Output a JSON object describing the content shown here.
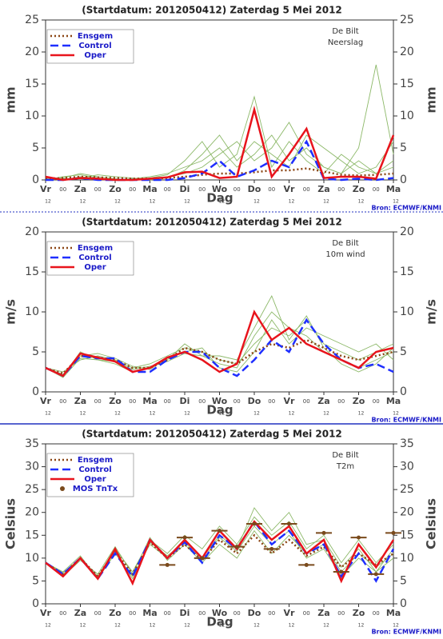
{
  "chart_data": [
    {
      "type": "line",
      "title": "(Startdatum: 2012050412)   Zaterdag   5 Mei      2012",
      "station": "De Bilt",
      "variable": "Neerslag",
      "ylabel": "mm",
      "xlabel": "Dag",
      "source": "Bron: ECMWF/KNMI",
      "x": [
        0,
        12,
        24,
        36,
        48,
        60,
        72,
        84,
        96,
        108,
        120,
        132,
        144,
        156,
        168,
        180,
        192,
        204,
        216,
        228,
        240
      ],
      "xlim": [
        0,
        240
      ],
      "xticks": [
        {
          "value": 0,
          "label": "Vr"
        },
        {
          "value": 24,
          "label": "Za"
        },
        {
          "value": 48,
          "label": "Zo"
        },
        {
          "value": 72,
          "label": "Ma"
        },
        {
          "value": 96,
          "label": "Di"
        },
        {
          "value": 120,
          "label": "Wo"
        },
        {
          "value": 144,
          "label": "Do"
        },
        {
          "value": 168,
          "label": "Vr"
        },
        {
          "value": 192,
          "label": "Za"
        },
        {
          "value": 216,
          "label": "Zo"
        },
        {
          "value": 240,
          "label": "Ma"
        }
      ],
      "xsubticks": [
        {
          "value": 0,
          "label": "12"
        },
        {
          "value": 24,
          "label": "12"
        },
        {
          "value": 48,
          "label": "12"
        },
        {
          "value": 72,
          "label": "12"
        },
        {
          "value": 96,
          "label": "12"
        },
        {
          "value": 120,
          "label": "12"
        },
        {
          "value": 144,
          "label": "12"
        },
        {
          "value": 168,
          "label": "12"
        },
        {
          "value": 192,
          "label": "12"
        },
        {
          "value": 216,
          "label": "12"
        },
        {
          "value": 240,
          "label": "12"
        }
      ],
      "xminorticks": [
        {
          "value": 12,
          "label": "00"
        },
        {
          "value": 36,
          "label": "00"
        },
        {
          "value": 60,
          "label": "00"
        },
        {
          "value": 84,
          "label": "00"
        },
        {
          "value": 108,
          "label": "00"
        },
        {
          "value": 132,
          "label": "00"
        },
        {
          "value": 156,
          "label": "00"
        },
        {
          "value": 180,
          "label": "00"
        },
        {
          "value": 204,
          "label": "00"
        },
        {
          "value": 228,
          "label": "00"
        }
      ],
      "ylim": [
        0,
        25
      ],
      "yticks": [
        0,
        5,
        10,
        15,
        20,
        25
      ],
      "ensemble_color": "#8cb868",
      "ensemble": [
        [
          0,
          0.5,
          0.8,
          0.3,
          0,
          0.2,
          0.5,
          1,
          2,
          3,
          5,
          2,
          4,
          7,
          3,
          5,
          2,
          1,
          3,
          1,
          2
        ],
        [
          0.2,
          0.3,
          1,
          0.5,
          0.2,
          0,
          0.3,
          0.8,
          3,
          6,
          2,
          4,
          13,
          2,
          6,
          3,
          1,
          4,
          2,
          1,
          3
        ],
        [
          0,
          0.2,
          0.3,
          0.8,
          0.5,
          0.3,
          0,
          0.5,
          1,
          2,
          4,
          6,
          3,
          5,
          9,
          4,
          2,
          1,
          5,
          18,
          4
        ],
        [
          0.3,
          0,
          0.5,
          0.2,
          0,
          0.1,
          0.2,
          0.3,
          1.5,
          4,
          7,
          3,
          6,
          4,
          2,
          7,
          5,
          3,
          1,
          2,
          6
        ]
      ],
      "series": [
        {
          "name": "Ensgem",
          "color": "#8b4513",
          "style": "dotted",
          "values": [
            0.2,
            0.3,
            0.5,
            0.4,
            0.3,
            0.2,
            0.2,
            0.3,
            0.5,
            0.8,
            1,
            1,
            1.2,
            1.5,
            1.5,
            1.8,
            1.3,
            0.8,
            0.7,
            0.8,
            1
          ]
        },
        {
          "name": "Control",
          "color": "#1f2fff",
          "style": "dashed",
          "values": [
            0,
            0,
            0.3,
            0,
            0,
            0,
            0,
            0,
            0.3,
            1,
            3,
            0.5,
            1.5,
            3,
            2,
            6,
            0.2,
            0,
            0.2,
            0,
            0.3
          ]
        },
        {
          "name": "Oper",
          "color": "#e8141c",
          "style": "solid",
          "values": [
            0.5,
            0,
            0.3,
            0.2,
            0,
            0,
            0.2,
            0.4,
            1.2,
            1.3,
            0.3,
            0.5,
            11,
            0.5,
            4,
            8,
            0.3,
            0.5,
            0.5,
            0.2,
            7
          ]
        }
      ]
    },
    {
      "type": "line",
      "title": "(Startdatum: 2012050412)   Zaterdag   5 Mei      2012",
      "station": "De Bilt",
      "variable": "10m wind",
      "ylabel": "m/s",
      "xlabel": "Dag",
      "source": "Bron: ECMWF/KNMI",
      "x": [
        0,
        12,
        24,
        36,
        48,
        60,
        72,
        84,
        96,
        108,
        120,
        132,
        144,
        156,
        168,
        180,
        192,
        204,
        216,
        228,
        240
      ],
      "xlim": [
        0,
        240
      ],
      "xticks": [
        {
          "value": 0,
          "label": "Vr"
        },
        {
          "value": 24,
          "label": "Za"
        },
        {
          "value": 48,
          "label": "Zo"
        },
        {
          "value": 72,
          "label": "Ma"
        },
        {
          "value": 96,
          "label": "Di"
        },
        {
          "value": 120,
          "label": "Wo"
        },
        {
          "value": 144,
          "label": "Do"
        },
        {
          "value": 168,
          "label": "Vr"
        },
        {
          "value": 192,
          "label": "Za"
        },
        {
          "value": 216,
          "label": "Zo"
        },
        {
          "value": 240,
          "label": "Ma"
        }
      ],
      "xsubticks": [
        {
          "value": 0,
          "label": "12"
        },
        {
          "value": 24,
          "label": "12"
        },
        {
          "value": 48,
          "label": "12"
        },
        {
          "value": 72,
          "label": "12"
        },
        {
          "value": 96,
          "label": "12"
        },
        {
          "value": 120,
          "label": "12"
        },
        {
          "value": 144,
          "label": "12"
        },
        {
          "value": 168,
          "label": "12"
        },
        {
          "value": 192,
          "label": "12"
        },
        {
          "value": 216,
          "label": "12"
        },
        {
          "value": 240,
          "label": "12"
        }
      ],
      "xminorticks": [
        {
          "value": 12,
          "label": "00"
        },
        {
          "value": 36,
          "label": "00"
        },
        {
          "value": 60,
          "label": "00"
        },
        {
          "value": 84,
          "label": "00"
        },
        {
          "value": 108,
          "label": "00"
        },
        {
          "value": 132,
          "label": "00"
        },
        {
          "value": 156,
          "label": "00"
        },
        {
          "value": 180,
          "label": "00"
        },
        {
          "value": 204,
          "label": "00"
        },
        {
          "value": 228,
          "label": "00"
        }
      ],
      "ylim": [
        0,
        20
      ],
      "yticks": [
        0,
        5,
        10,
        15,
        20
      ],
      "ensemble_color": "#8cb868",
      "ensemble": [
        [
          3,
          2.5,
          4,
          4.5,
          4,
          3,
          3.5,
          4.5,
          5.5,
          5,
          4,
          3.5,
          6,
          8,
          7,
          9,
          6,
          5,
          4,
          5,
          6
        ],
        [
          3,
          2,
          5,
          4,
          3.5,
          2.5,
          3,
          4,
          6,
          4.5,
          3.5,
          3,
          7,
          10,
          8,
          7,
          5,
          4,
          3,
          4,
          5
        ],
        [
          3,
          2.2,
          4.5,
          4.8,
          4.2,
          3.2,
          2.8,
          4.2,
          5,
          5.5,
          3,
          2.5,
          5,
          9,
          6,
          8,
          7,
          6,
          5,
          6,
          4
        ],
        [
          3,
          1.8,
          4.2,
          4,
          3.8,
          2.8,
          3.2,
          3.8,
          4.8,
          4.5,
          4.5,
          4,
          8,
          12,
          6.5,
          9.5,
          5.5,
          3.5,
          2.5,
          3.5,
          5.5
        ]
      ],
      "series": [
        {
          "name": "Ensgem",
          "color": "#8b4513",
          "style": "dotted",
          "values": [
            3,
            2.3,
            4.5,
            4.3,
            4,
            3,
            3,
            4,
            5.5,
            5,
            4,
            3.5,
            5,
            6,
            5.5,
            6.5,
            5.5,
            4.5,
            4,
            4.5,
            5
          ]
        },
        {
          "name": "Control",
          "color": "#1f2fff",
          "style": "dashed",
          "values": [
            3,
            2,
            4.5,
            4.2,
            4.2,
            2.5,
            2.5,
            4,
            5,
            5,
            3,
            2,
            4,
            6.5,
            5,
            9,
            6,
            4,
            3,
            3.5,
            2.5
          ]
        },
        {
          "name": "Oper",
          "color": "#e8141c",
          "style": "solid",
          "values": [
            3,
            2,
            4.8,
            4.3,
            3.8,
            2.5,
            3,
            4.3,
            5,
            4,
            2.5,
            3.5,
            10,
            6.5,
            8,
            6,
            5,
            4,
            3,
            5,
            5.5
          ]
        }
      ]
    },
    {
      "type": "line",
      "title": "(Startdatum: 2012050412)   Zaterdag   5 Mei      2012",
      "station": "De Bilt",
      "variable": "T2m",
      "ylabel": "Celsius",
      "xlabel": "Dag",
      "source": "Bron: ECMWF/KNMI",
      "x": [
        0,
        12,
        24,
        36,
        48,
        60,
        72,
        84,
        96,
        108,
        120,
        132,
        144,
        156,
        168,
        180,
        192,
        204,
        216,
        228,
        240
      ],
      "xlim": [
        0,
        240
      ],
      "xticks": [
        {
          "value": 0,
          "label": "Vr"
        },
        {
          "value": 24,
          "label": "Za"
        },
        {
          "value": 48,
          "label": "Zo"
        },
        {
          "value": 72,
          "label": "Ma"
        },
        {
          "value": 96,
          "label": "Di"
        },
        {
          "value": 120,
          "label": "Wo"
        },
        {
          "value": 144,
          "label": "Do"
        },
        {
          "value": 168,
          "label": "Vr"
        },
        {
          "value": 192,
          "label": "Za"
        },
        {
          "value": 216,
          "label": "Zo"
        },
        {
          "value": 240,
          "label": "Ma"
        }
      ],
      "xsubticks": [
        {
          "value": 0,
          "label": "12"
        },
        {
          "value": 24,
          "label": "12"
        },
        {
          "value": 48,
          "label": "12"
        },
        {
          "value": 72,
          "label": "12"
        },
        {
          "value": 96,
          "label": "12"
        },
        {
          "value": 120,
          "label": "12"
        },
        {
          "value": 144,
          "label": "12"
        },
        {
          "value": 168,
          "label": "12"
        },
        {
          "value": 192,
          "label": "12"
        },
        {
          "value": 216,
          "label": "12"
        },
        {
          "value": 240,
          "label": "12"
        }
      ],
      "xminorticks": [
        {
          "value": 12,
          "label": "00"
        },
        {
          "value": 36,
          "label": "00"
        },
        {
          "value": 60,
          "label": "00"
        },
        {
          "value": 84,
          "label": "00"
        },
        {
          "value": 108,
          "label": "00"
        },
        {
          "value": 132,
          "label": "00"
        },
        {
          "value": 156,
          "label": "00"
        },
        {
          "value": 180,
          "label": "00"
        },
        {
          "value": 204,
          "label": "00"
        },
        {
          "value": 228,
          "label": "00"
        }
      ],
      "ylim": [
        0,
        35
      ],
      "yticks": [
        0,
        5,
        10,
        15,
        20,
        25,
        30,
        35
      ],
      "ensemble_color": "#8cb868",
      "ensemble": [
        [
          9,
          6.5,
          10,
          6,
          12,
          7,
          14,
          11,
          15,
          12,
          17,
          13,
          19,
          15,
          18,
          12,
          15,
          9,
          14,
          9,
          13
        ],
        [
          9,
          7,
          10.5,
          5.5,
          11,
          6,
          13,
          10,
          14,
          10,
          15,
          12,
          21,
          16,
          20,
          13,
          14,
          8,
          12,
          7,
          12
        ],
        [
          9,
          6,
          9.5,
          6.5,
          12.5,
          6.5,
          14.5,
          9.5,
          13,
          9,
          13,
          10,
          16,
          11,
          15,
          11,
          13,
          7,
          11,
          8,
          11
        ],
        [
          9,
          6.8,
          10,
          5.8,
          11.5,
          5.5,
          13.5,
          10.5,
          13.5,
          9.5,
          14.5,
          11.5,
          17,
          13,
          16,
          10,
          12,
          6,
          10,
          7,
          10
        ]
      ],
      "series": [
        {
          "name": "Ensgem",
          "color": "#8b4513",
          "style": "dotted",
          "values": [
            9,
            6.5,
            10,
            6,
            11.5,
            6.5,
            13.5,
            10,
            13,
            9.5,
            14,
            11,
            15,
            11,
            14,
            10.5,
            12.5,
            8,
            11,
            8.5,
            11
          ]
        },
        {
          "name": "Control",
          "color": "#1f2fff",
          "style": "dashed",
          "values": [
            9,
            6.5,
            10,
            5.5,
            11,
            6,
            14,
            10,
            13.5,
            9,
            15,
            12,
            18,
            13,
            16,
            11,
            13,
            6,
            11,
            5,
            12
          ]
        },
        {
          "name": "Oper",
          "color": "#e8141c",
          "style": "solid",
          "values": [
            9,
            6,
            10,
            5.5,
            12,
            4.5,
            14,
            10,
            14,
            10,
            16,
            12,
            18,
            14,
            17,
            11,
            14,
            5,
            13,
            8,
            14
          ]
        }
      ],
      "points": {
        "name": "MOS TnTx",
        "color": "#7a4a1c",
        "x": [
          84,
          96,
          108,
          120,
          132,
          144,
          156,
          168,
          180,
          192,
          204,
          216,
          228,
          240
        ],
        "values": [
          8.5,
          14.5,
          10,
          16,
          12.5,
          17.5,
          12,
          17.5,
          8.5,
          15.5,
          7,
          14.5,
          6.5,
          15.5
        ]
      }
    }
  ]
}
